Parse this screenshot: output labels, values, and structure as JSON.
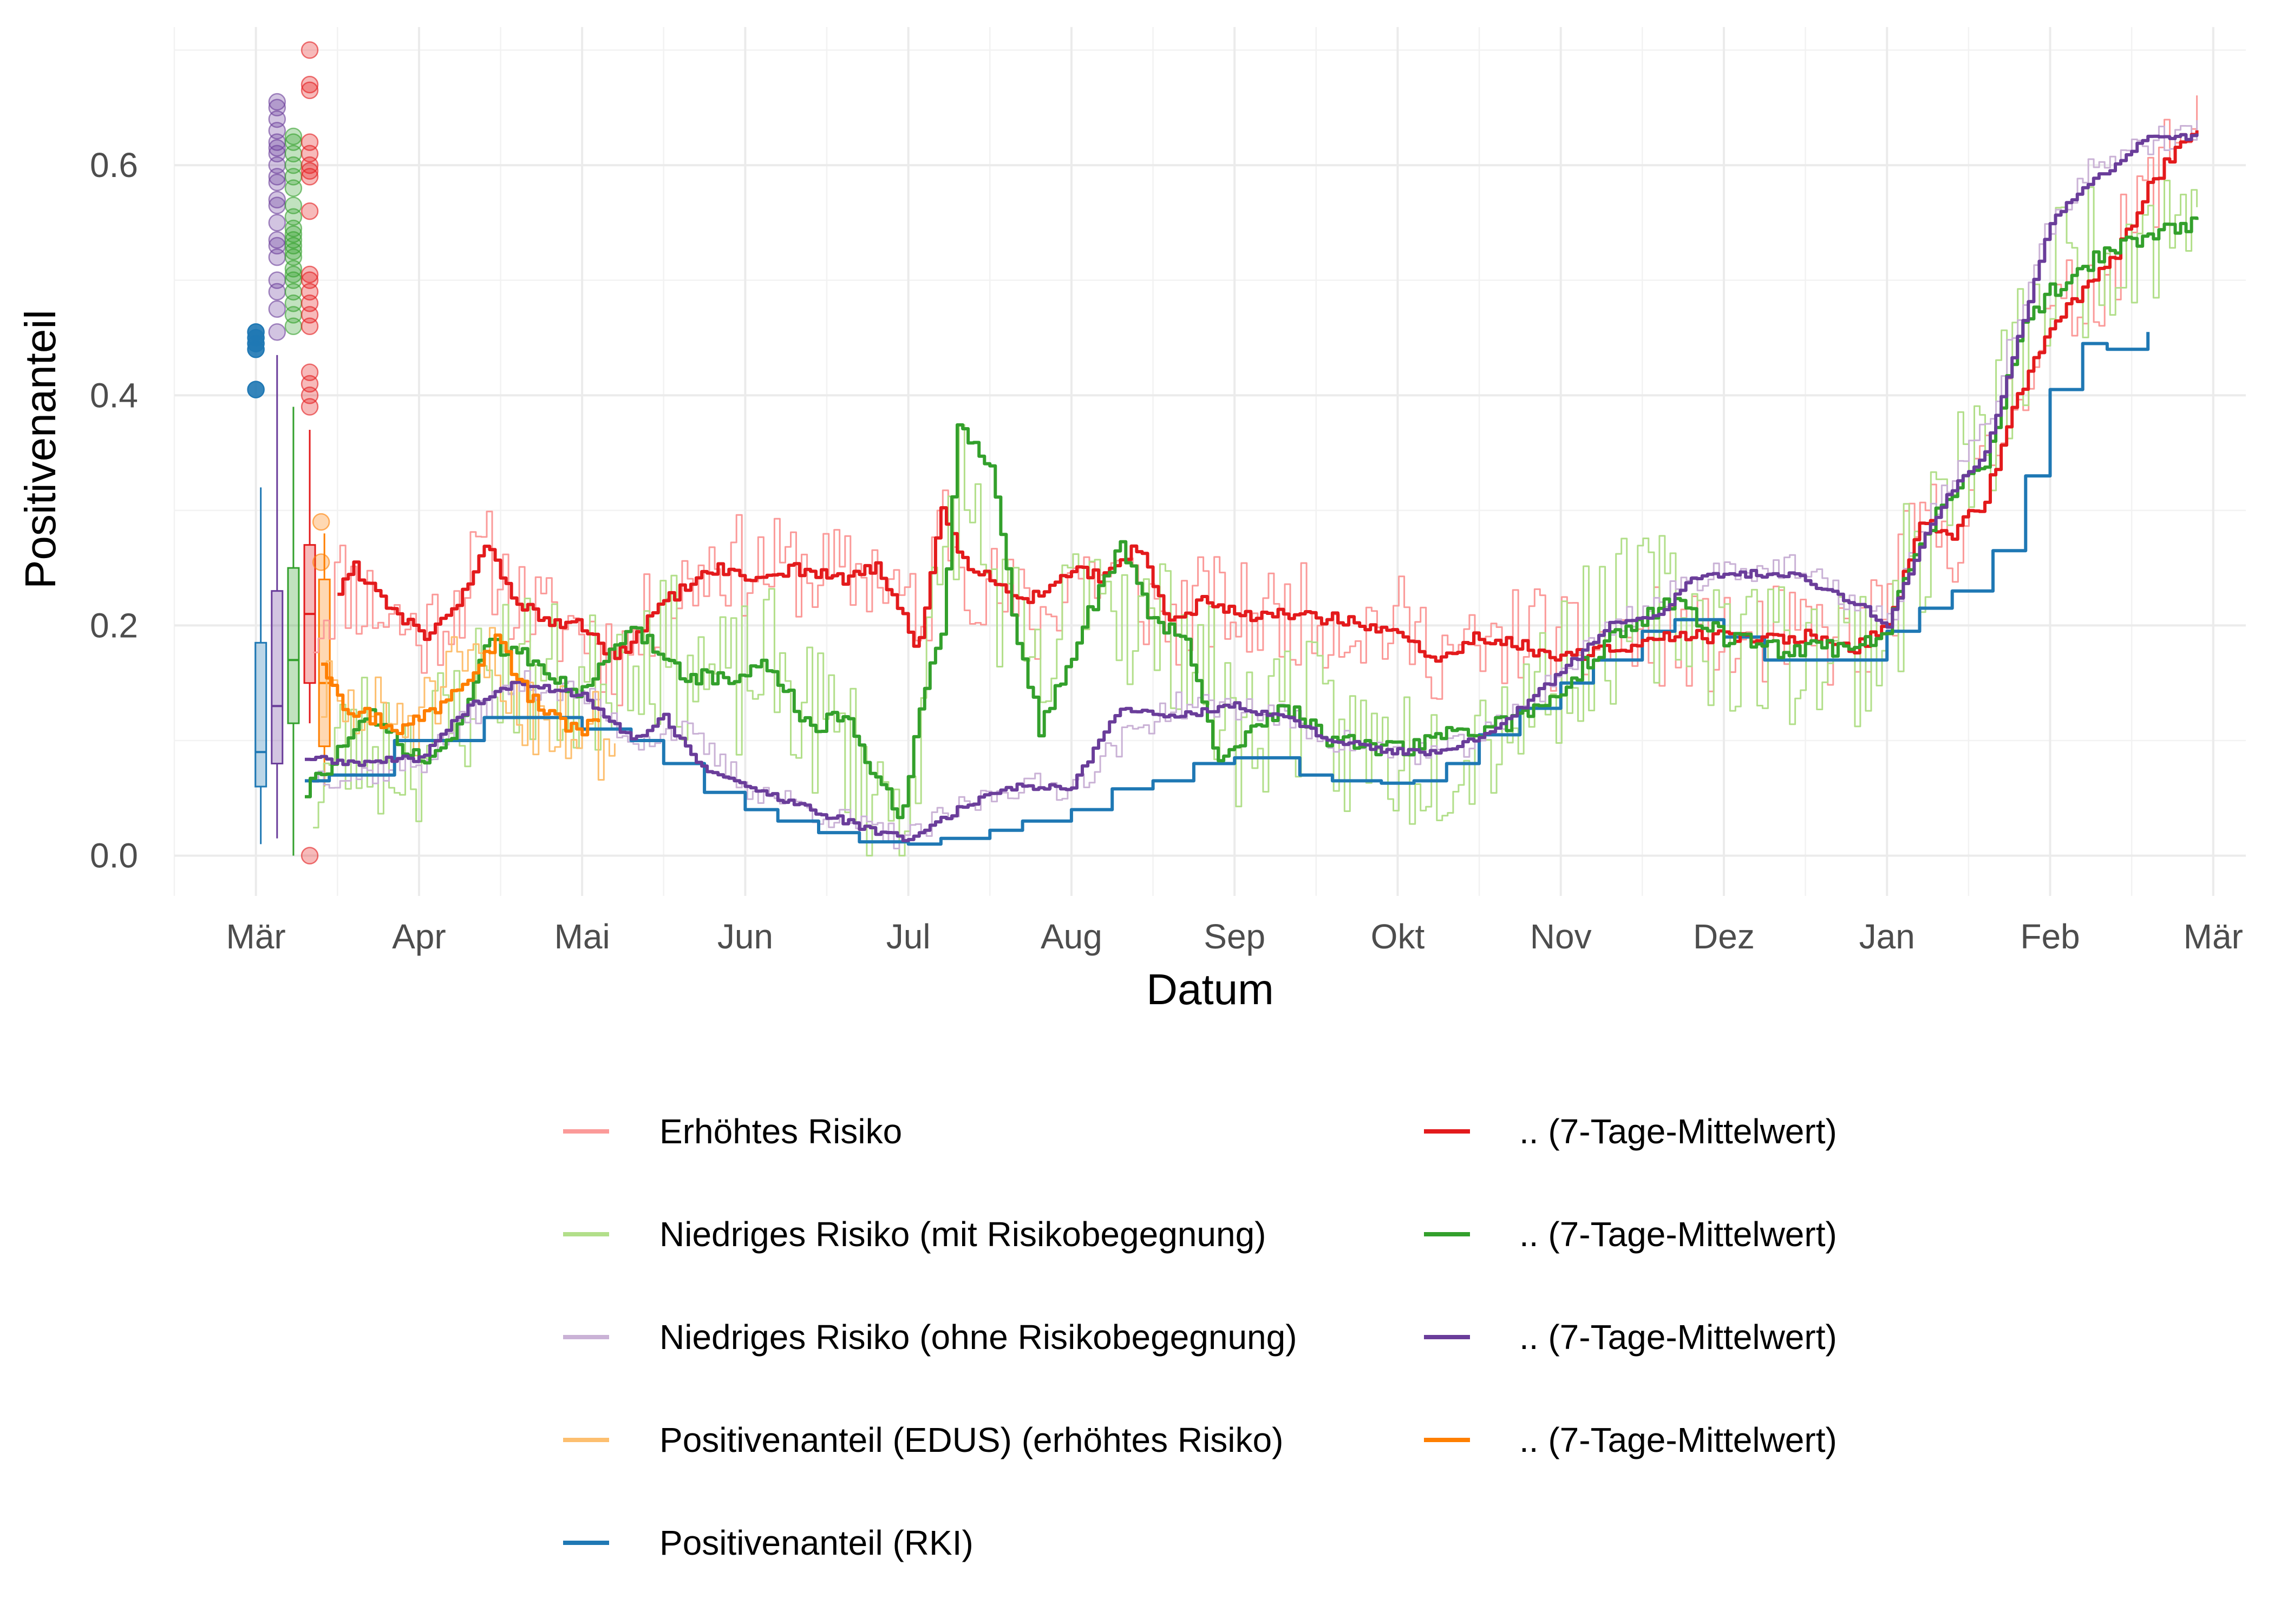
{
  "chart_data": {
    "type": "line",
    "xlabel": "Datum",
    "ylabel": "Positivenanteil",
    "x_unit": "month (0 = start of März)",
    "xlim": [
      -0.5,
      12.2
    ],
    "ylim": [
      -0.035,
      0.72
    ],
    "grid": true,
    "legend_position": "bottom",
    "x_ticks": [
      {
        "label": "Mär",
        "x": 0
      },
      {
        "label": "Apr",
        "x": 1
      },
      {
        "label": "Mai",
        "x": 2
      },
      {
        "label": "Jun",
        "x": 3
      },
      {
        "label": "Jul",
        "x": 4
      },
      {
        "label": "Aug",
        "x": 5
      },
      {
        "label": "Sep",
        "x": 6
      },
      {
        "label": "Okt",
        "x": 7
      },
      {
        "label": "Nov",
        "x": 8
      },
      {
        "label": "Dez",
        "x": 9
      },
      {
        "label": "Jan",
        "x": 10
      },
      {
        "label": "Feb",
        "x": 11
      },
      {
        "label": "Mär",
        "x": 12
      }
    ],
    "y_ticks": [
      {
        "label": "0.0",
        "y": 0.0
      },
      {
        "label": "0.2",
        "y": 0.2
      },
      {
        "label": "0.4",
        "y": 0.4
      },
      {
        "label": "0.6",
        "y": 0.6
      }
    ],
    "legend": {
      "left": [
        {
          "label": "Erhöhtes Risiko",
          "color": "#fb9a99"
        },
        {
          "label": "Niedriges Risiko (mit Risikobegegnung)",
          "color": "#b2df8a"
        },
        {
          "label": "Niedriges Risiko (ohne Risikobegegnung)",
          "color": "#cab2d6"
        },
        {
          "label": "Positivenanteil (EDUS) (erhöhtes Risiko)",
          "color": "#fdbf6f"
        },
        {
          "label": "Positivenanteil (RKI)",
          "color": "#1f78b4"
        }
      ],
      "right": [
        {
          "label": ".. (7-Tage-Mittelwert)",
          "color": "#e31a1c"
        },
        {
          "label": ".. (7-Tage-Mittelwert)",
          "color": "#33a02c"
        },
        {
          "label": ".. (7-Tage-Mittelwert)",
          "color": "#6a3d9a"
        },
        {
          "label": ".. (7-Tage-Mittelwert)",
          "color": "#ff7f00"
        }
      ]
    },
    "series": [
      {
        "key": "red_raw",
        "color": "#fb9a99",
        "width": 3,
        "step": true,
        "noise": 0.045,
        "seed": 11,
        "x": [
          0.35,
          0.5,
          0.8,
          1.0,
          1.2,
          1.4,
          1.6,
          1.8,
          2.0,
          2.2,
          2.5,
          2.8,
          3.0,
          3.3,
          3.6,
          3.8,
          4.0,
          4.05,
          4.2,
          4.35,
          4.5,
          4.8,
          5.0,
          5.3,
          5.6,
          5.8,
          6.0,
          6.4,
          6.8,
          7.0,
          7.2,
          7.5,
          7.8,
          8.0,
          8.3,
          8.6,
          9.0,
          9.3,
          9.6,
          9.8,
          10.0,
          10.2,
          10.4,
          10.6,
          10.8,
          11.0,
          11.2,
          11.4,
          11.6,
          11.8,
          11.9
        ],
        "y": [
          0.2,
          0.24,
          0.21,
          0.19,
          0.22,
          0.26,
          0.22,
          0.2,
          0.2,
          0.17,
          0.22,
          0.26,
          0.25,
          0.25,
          0.24,
          0.25,
          0.22,
          0.17,
          0.3,
          0.25,
          0.23,
          0.2,
          0.25,
          0.24,
          0.2,
          0.22,
          0.21,
          0.21,
          0.2,
          0.2,
          0.18,
          0.17,
          0.2,
          0.18,
          0.18,
          0.19,
          0.18,
          0.19,
          0.19,
          0.18,
          0.22,
          0.29,
          0.28,
          0.33,
          0.42,
          0.46,
          0.49,
          0.52,
          0.58,
          0.63,
          0.66
        ]
      },
      {
        "key": "green_raw",
        "color": "#b2df8a",
        "width": 3,
        "step": true,
        "noise": 0.07,
        "seed": 23,
        "x": [
          0.35,
          0.6,
          0.9,
          1.1,
          1.3,
          1.5,
          1.7,
          2.0,
          2.3,
          2.6,
          2.9,
          3.1,
          3.4,
          3.6,
          3.8,
          3.95,
          4.1,
          4.3,
          4.5,
          4.8,
          5.1,
          5.4,
          5.7,
          6.0,
          6.3,
          6.6,
          6.9,
          7.2,
          7.5,
          7.8,
          8.1,
          8.4,
          8.7,
          9.0,
          9.3,
          9.6,
          9.8,
          10.0,
          10.2,
          10.4,
          10.6,
          10.8,
          11.0,
          11.3,
          11.6,
          11.9
        ],
        "y": [
          0.06,
          0.1,
          0.09,
          0.1,
          0.14,
          0.17,
          0.16,
          0.14,
          0.19,
          0.17,
          0.14,
          0.17,
          0.12,
          0.1,
          0.05,
          0.04,
          0.15,
          0.33,
          0.24,
          0.13,
          0.27,
          0.2,
          0.19,
          0.1,
          0.14,
          0.1,
          0.09,
          0.09,
          0.11,
          0.14,
          0.18,
          0.21,
          0.22,
          0.19,
          0.18,
          0.18,
          0.18,
          0.2,
          0.27,
          0.33,
          0.35,
          0.44,
          0.5,
          0.53,
          0.55,
          0.56
        ]
      },
      {
        "key": "purple_raw",
        "color": "#cab2d6",
        "width": 3,
        "step": true,
        "noise": 0.012,
        "seed": 37,
        "x": [
          0.35,
          0.6,
          1.0,
          1.3,
          1.6,
          2.0,
          2.3,
          2.6,
          3.0,
          3.4,
          3.8,
          4.0,
          4.3,
          4.6,
          5.0,
          5.3,
          5.6,
          6.0,
          6.3,
          6.6,
          7.0,
          7.3,
          7.6,
          8.0,
          8.3,
          8.6,
          8.8,
          9.0,
          9.4,
          9.8,
          10.0,
          10.2,
          10.4,
          10.6,
          10.8,
          11.0,
          11.2,
          11.4,
          11.6,
          11.9
        ],
        "y": [
          0.07,
          0.07,
          0.08,
          0.12,
          0.15,
          0.14,
          0.1,
          0.11,
          0.06,
          0.04,
          0.02,
          0.015,
          0.04,
          0.06,
          0.06,
          0.1,
          0.13,
          0.13,
          0.12,
          0.1,
          0.09,
          0.09,
          0.11,
          0.16,
          0.2,
          0.22,
          0.24,
          0.25,
          0.25,
          0.22,
          0.2,
          0.28,
          0.33,
          0.37,
          0.47,
          0.55,
          0.59,
          0.61,
          0.62,
          0.63
        ]
      },
      {
        "key": "orange_raw",
        "color": "#fdbf6f",
        "width": 3,
        "step": true,
        "noise": 0.04,
        "seed": 51,
        "x": [
          0.4,
          0.6,
          0.8,
          1.0,
          1.2,
          1.4,
          1.6,
          1.8,
          2.0,
          2.2
        ],
        "y": [
          0.14,
          0.12,
          0.12,
          0.12,
          0.15,
          0.17,
          0.13,
          0.12,
          0.11,
          0.1
        ]
      },
      {
        "key": "rki",
        "color": "#1f78b4",
        "width": 6,
        "step": true,
        "noise": 0,
        "seed": 0,
        "x": [
          0.3,
          0.45,
          0.85,
          1.4,
          2.0,
          2.3,
          2.5,
          2.75,
          3.0,
          3.2,
          3.45,
          3.7,
          4.0,
          4.2,
          4.5,
          4.7,
          5.0,
          5.25,
          5.5,
          5.75,
          6.0,
          6.4,
          6.6,
          6.9,
          7.1,
          7.3,
          7.5,
          7.75,
          8.0,
          8.2,
          8.5,
          8.7,
          9.0,
          9.25,
          9.5,
          9.75,
          10.0,
          10.2,
          10.4,
          10.65,
          10.85,
          11.0,
          11.2,
          11.35,
          11.6
        ],
        "y": [
          0.065,
          0.07,
          0.1,
          0.12,
          0.11,
          0.1,
          0.08,
          0.055,
          0.04,
          0.03,
          0.02,
          0.012,
          0.01,
          0.015,
          0.022,
          0.03,
          0.04,
          0.058,
          0.065,
          0.08,
          0.085,
          0.07,
          0.065,
          0.063,
          0.065,
          0.08,
          0.105,
          0.128,
          0.15,
          0.17,
          0.195,
          0.205,
          0.19,
          0.17,
          0.17,
          0.17,
          0.195,
          0.215,
          0.23,
          0.265,
          0.33,
          0.405,
          0.445,
          0.44,
          0.455
        ]
      },
      {
        "key": "red_avg",
        "color": "#e31a1c",
        "width": 6,
        "step": true,
        "noise": 0.006,
        "seed": 61,
        "x": [
          0.5,
          0.6,
          0.8,
          1.0,
          1.2,
          1.4,
          1.6,
          1.8,
          2.0,
          2.2,
          2.5,
          2.8,
          3.0,
          3.3,
          3.6,
          3.8,
          4.0,
          4.05,
          4.2,
          4.35,
          4.5,
          4.7,
          5.0,
          5.2,
          5.4,
          5.6,
          5.8,
          6.0,
          6.4,
          6.8,
          7.0,
          7.2,
          7.5,
          7.8,
          8.0,
          8.3,
          8.6,
          9.0,
          9.3,
          9.6,
          9.8,
          10.0,
          10.2,
          10.4,
          10.6,
          10.8,
          11.0,
          11.2,
          11.4,
          11.6,
          11.8,
          11.9
        ],
        "y": [
          0.23,
          0.25,
          0.22,
          0.19,
          0.21,
          0.27,
          0.22,
          0.2,
          0.2,
          0.17,
          0.22,
          0.25,
          0.24,
          0.25,
          0.24,
          0.25,
          0.2,
          0.17,
          0.3,
          0.25,
          0.24,
          0.22,
          0.25,
          0.24,
          0.27,
          0.2,
          0.22,
          0.21,
          0.21,
          0.2,
          0.19,
          0.17,
          0.19,
          0.18,
          0.17,
          0.18,
          0.19,
          0.19,
          0.19,
          0.19,
          0.18,
          0.2,
          0.29,
          0.28,
          0.31,
          0.4,
          0.46,
          0.49,
          0.52,
          0.58,
          0.62,
          0.625
        ]
      },
      {
        "key": "green_avg",
        "color": "#33a02c",
        "width": 6,
        "step": true,
        "noise": 0.008,
        "seed": 73,
        "x": [
          0.3,
          0.5,
          0.7,
          1.0,
          1.2,
          1.4,
          1.6,
          1.8,
          2.0,
          2.3,
          2.6,
          2.9,
          3.1,
          3.4,
          3.6,
          3.8,
          3.95,
          4.05,
          4.2,
          4.3,
          4.5,
          4.65,
          4.8,
          5.1,
          5.3,
          5.5,
          5.7,
          5.9,
          6.0,
          6.3,
          6.6,
          6.9,
          7.2,
          7.5,
          7.8,
          8.1,
          8.4,
          8.7,
          9.0,
          9.3,
          9.6,
          9.8,
          10.0,
          10.2,
          10.4,
          10.6,
          10.8,
          11.0,
          11.2,
          11.4,
          11.6,
          11.9
        ],
        "y": [
          0.055,
          0.09,
          0.12,
          0.08,
          0.1,
          0.18,
          0.18,
          0.16,
          0.14,
          0.2,
          0.16,
          0.15,
          0.17,
          0.11,
          0.12,
          0.07,
          0.03,
          0.12,
          0.2,
          0.37,
          0.34,
          0.2,
          0.11,
          0.21,
          0.27,
          0.2,
          0.19,
          0.08,
          0.1,
          0.13,
          0.1,
          0.09,
          0.1,
          0.11,
          0.12,
          0.16,
          0.2,
          0.22,
          0.19,
          0.18,
          0.18,
          0.18,
          0.2,
          0.27,
          0.32,
          0.34,
          0.45,
          0.49,
          0.51,
          0.53,
          0.54,
          0.548
        ]
      },
      {
        "key": "purple_avg",
        "color": "#6a3d9a",
        "width": 6,
        "step": true,
        "noise": 0.003,
        "seed": 89,
        "x": [
          0.3,
          0.6,
          1.0,
          1.3,
          1.6,
          2.0,
          2.3,
          2.5,
          2.7,
          3.0,
          3.4,
          3.8,
          4.0,
          4.3,
          4.6,
          5.0,
          5.3,
          5.6,
          6.0,
          6.3,
          6.6,
          7.0,
          7.3,
          7.6,
          8.0,
          8.3,
          8.6,
          8.8,
          9.0,
          9.4,
          9.8,
          10.0,
          10.2,
          10.4,
          10.6,
          10.8,
          11.0,
          11.2,
          11.4,
          11.6,
          11.9
        ],
        "y": [
          0.085,
          0.08,
          0.085,
          0.13,
          0.15,
          0.14,
          0.1,
          0.12,
          0.08,
          0.06,
          0.04,
          0.02,
          0.015,
          0.04,
          0.06,
          0.06,
          0.13,
          0.12,
          0.13,
          0.12,
          0.1,
          0.09,
          0.09,
          0.11,
          0.16,
          0.2,
          0.21,
          0.24,
          0.245,
          0.245,
          0.22,
          0.2,
          0.27,
          0.32,
          0.35,
          0.45,
          0.55,
          0.58,
          0.6,
          0.625,
          0.625
        ]
      },
      {
        "key": "orange_avg",
        "color": "#ff7f00",
        "width": 6,
        "step": true,
        "noise": 0.008,
        "seed": 97,
        "x": [
          0.4,
          0.55,
          0.7,
          0.9,
          1.1,
          1.3,
          1.4,
          1.5,
          1.6,
          1.8,
          2.0,
          2.1
        ],
        "y": [
          0.17,
          0.13,
          0.12,
          0.11,
          0.13,
          0.16,
          0.18,
          0.19,
          0.15,
          0.12,
          0.11,
          0.115
        ]
      }
    ],
    "points": [
      {
        "x": 0.0,
        "color": "#1f78b4",
        "y": [
          0.455,
          0.45,
          0.445,
          0.44,
          0.405
        ]
      },
      {
        "x": 0.13,
        "color": "#6a3d9a",
        "y": [
          0.655,
          0.65,
          0.64,
          0.63,
          0.62,
          0.615,
          0.61,
          0.6,
          0.59,
          0.585,
          0.57,
          0.565,
          0.55,
          0.535,
          0.53,
          0.52,
          0.5,
          0.49,
          0.475,
          0.455
        ]
      },
      {
        "x": 0.23,
        "color": "#33a02c",
        "y": [
          0.625,
          0.62,
          0.61,
          0.6,
          0.59,
          0.58,
          0.565,
          0.555,
          0.545,
          0.54,
          0.535,
          0.53,
          0.525,
          0.52,
          0.51,
          0.505,
          0.5,
          0.49,
          0.48,
          0.47,
          0.46
        ]
      },
      {
        "x": 0.33,
        "color": "#e31a1c",
        "y": [
          0.7,
          0.67,
          0.665,
          0.62,
          0.61,
          0.6,
          0.595,
          0.59,
          0.56,
          0.505,
          0.5,
          0.49,
          0.48,
          0.47,
          0.46,
          0.42,
          0.41,
          0.4,
          0.39,
          0.0
        ]
      },
      {
        "x": 0.4,
        "color": "#ff7f00",
        "y": [
          0.29,
          0.255
        ]
      }
    ],
    "boxplots": [
      {
        "x": 0.03,
        "color": "#1f78b4",
        "q1": 0.06,
        "median": 0.09,
        "q3": 0.185,
        "min": 0.01,
        "max": 0.32
      },
      {
        "x": 0.13,
        "color": "#6a3d9a",
        "q1": 0.08,
        "median": 0.13,
        "q3": 0.23,
        "min": 0.015,
        "max": 0.435
      },
      {
        "x": 0.23,
        "color": "#33a02c",
        "q1": 0.115,
        "median": 0.17,
        "q3": 0.25,
        "min": 0.0,
        "max": 0.39
      },
      {
        "x": 0.33,
        "color": "#e31a1c",
        "q1": 0.15,
        "median": 0.21,
        "q3": 0.27,
        "min": 0.115,
        "max": 0.37
      },
      {
        "x": 0.42,
        "color": "#ff7f00",
        "q1": 0.095,
        "median": 0.15,
        "q3": 0.24,
        "min": 0.06,
        "max": 0.28
      }
    ]
  }
}
